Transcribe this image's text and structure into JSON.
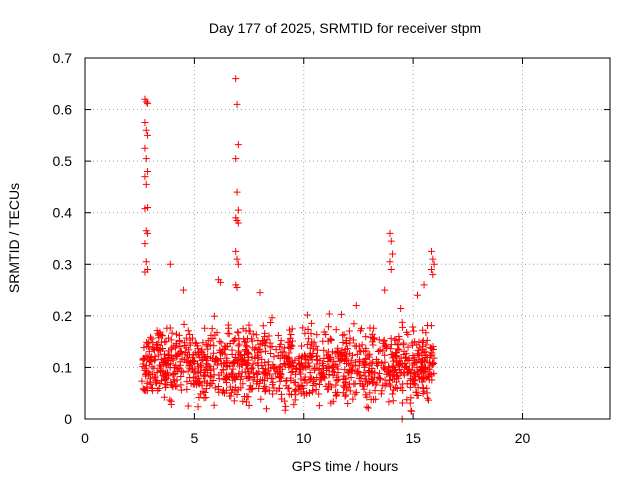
{
  "chart_data": {
    "type": "scatter",
    "title": "Day 177 of 2025, SRMTID for receiver stpm",
    "xlabel": "GPS time / hours",
    "ylabel": "SRMTID / TECUs",
    "xlim": [
      0,
      24
    ],
    "ylim": [
      0,
      0.7
    ],
    "xticks": [
      "0",
      "5",
      "10",
      "15",
      "20"
    ],
    "yticks": [
      "0",
      "0.1",
      "0.2",
      "0.3",
      "0.4",
      "0.5",
      "0.6",
      "0.7"
    ],
    "grid": true,
    "marker": "+",
    "color": "#ff0000",
    "spikes": [
      {
        "x": 2.8,
        "values": [
          0.62,
          0.615,
          0.612,
          0.575,
          0.56,
          0.55,
          0.525,
          0.505,
          0.48,
          0.47,
          0.455,
          0.41,
          0.408,
          0.365,
          0.36,
          0.34,
          0.305,
          0.29,
          0.285
        ]
      },
      {
        "x": 6.95,
        "values": [
          0.66,
          0.61,
          0.532,
          0.505,
          0.44,
          0.405,
          0.39,
          0.385,
          0.38,
          0.325,
          0.31,
          0.3,
          0.26,
          0.255
        ]
      },
      {
        "x": 14.0,
        "values": [
          0.36,
          0.345,
          0.32,
          0.305,
          0.29
        ]
      },
      {
        "x": 15.9,
        "values": [
          0.325,
          0.31,
          0.3,
          0.29,
          0.28
        ]
      }
    ],
    "bulk": {
      "x_range": [
        2.6,
        16.0
      ],
      "y_range": [
        0,
        0.25
      ],
      "count": 1250,
      "note": "dense cloud of points, mostly between 0.02 and 0.2 TECU"
    },
    "extra_points": [
      [
        3.9,
        0.3
      ],
      [
        4.5,
        0.25
      ],
      [
        6.1,
        0.27
      ],
      [
        6.2,
        0.265
      ],
      [
        8.0,
        0.245
      ],
      [
        12.4,
        0.22
      ],
      [
        13.7,
        0.25
      ],
      [
        15.5,
        0.26
      ],
      [
        15.2,
        0.24
      ],
      [
        14.5,
        0.0
      ]
    ]
  }
}
